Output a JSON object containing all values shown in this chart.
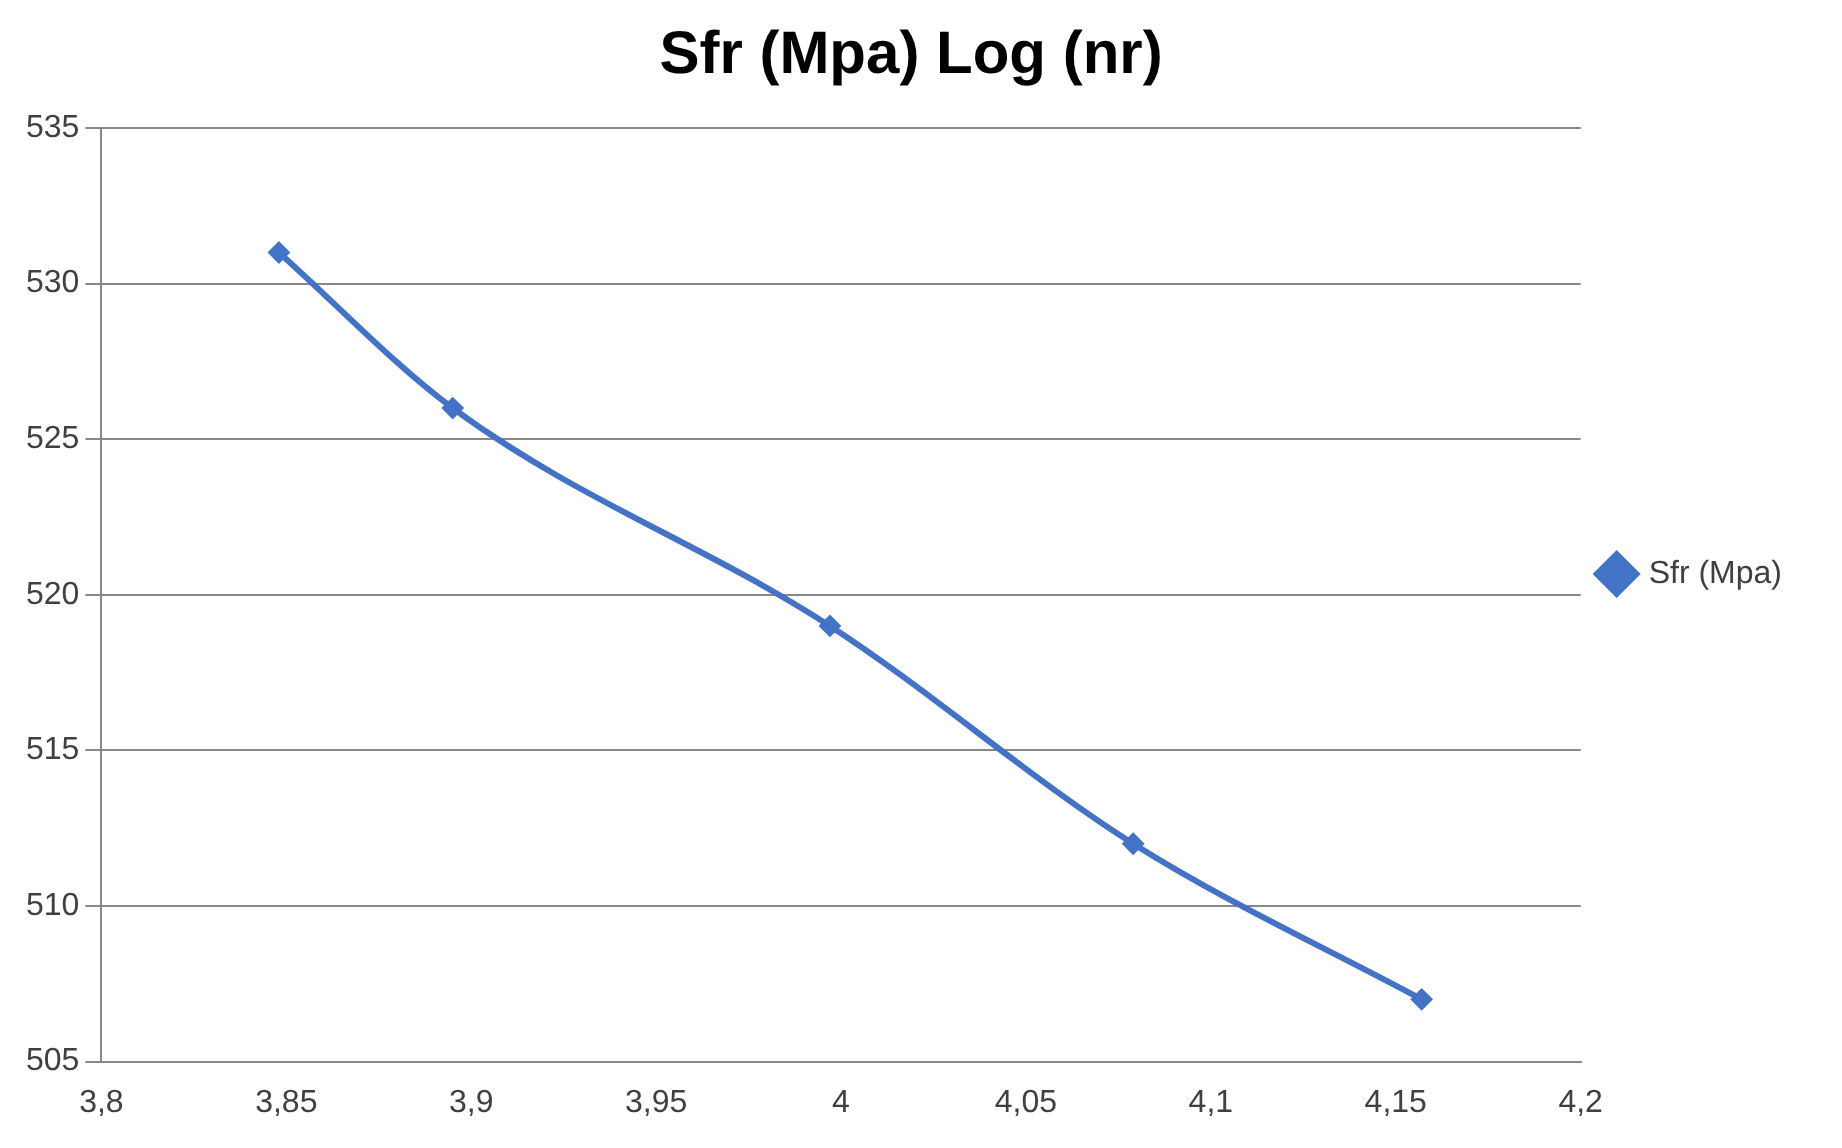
{
  "chart_data": {
    "type": "line",
    "title": "Sfr (Mpa) Log (nr)",
    "x": [
      3.848,
      3.895,
      3.997,
      4.079,
      4.157
    ],
    "series": [
      {
        "name": "Sfr (Mpa)",
        "color": "#4472c4",
        "values": [
          531,
          526,
          519,
          512,
          507
        ]
      }
    ],
    "xlim": [
      3.8,
      4.2
    ],
    "xticks": [
      {
        "value": 3.8,
        "label": "3,8"
      },
      {
        "value": 3.85,
        "label": "3,85"
      },
      {
        "value": 3.9,
        "label": "3,9"
      },
      {
        "value": 3.95,
        "label": "3,95"
      },
      {
        "value": 4,
        "label": "4"
      },
      {
        "value": 4.05,
        "label": "4,05"
      },
      {
        "value": 4.1,
        "label": "4,1"
      },
      {
        "value": 4.15,
        "label": "4,15"
      },
      {
        "value": 4.2,
        "label": "4,2"
      }
    ],
    "ylim": [
      505,
      535
    ],
    "yticks": [
      505,
      510,
      515,
      520,
      525,
      530,
      535
    ],
    "grid": "y",
    "legend": "right",
    "marker": "diamond",
    "line_style": "solid"
  }
}
